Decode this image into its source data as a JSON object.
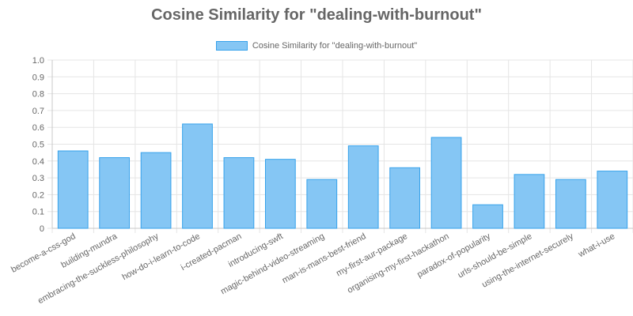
{
  "chart_data": {
    "type": "bar",
    "title": "Cosine Similarity for \"dealing-with-burnout\"",
    "legend": [
      {
        "label": "Cosine Similarity for \"dealing-with-burnout\"",
        "color": "#85c6f4",
        "border": "#36a2eb"
      }
    ],
    "categories": [
      "become-a-css-god",
      "building-mundra",
      "embracing-the-suckless-philosophy",
      "how-do-i-learn-to-code",
      "i-created-pacman",
      "introducing-swft",
      "magic-behind-video-streaming",
      "man-is-mans-best-friend",
      "my-first-aur-package",
      "organising-my-first-hackathon",
      "paradox-of-popularity",
      "urls-should-be-simple",
      "using-the-internet-securely",
      "what-i-use"
    ],
    "values": [
      0.46,
      0.42,
      0.45,
      0.62,
      0.42,
      0.41,
      0.29,
      0.49,
      0.36,
      0.54,
      0.14,
      0.32,
      0.29,
      0.34
    ],
    "ylim": [
      0,
      1.0
    ],
    "yticks": [
      "0",
      "0.1",
      "0.2",
      "0.3",
      "0.4",
      "0.5",
      "0.6",
      "0.7",
      "0.8",
      "0.9",
      "1.0"
    ],
    "xlabel": "",
    "ylabel": "",
    "grid": true,
    "legend_position": "top",
    "colors": {
      "bar_fill": "#85c6f4",
      "bar_border": "#36a2eb",
      "grid": "#e5e5e5",
      "axis": "#c8c8c8",
      "text": "#666666"
    }
  }
}
